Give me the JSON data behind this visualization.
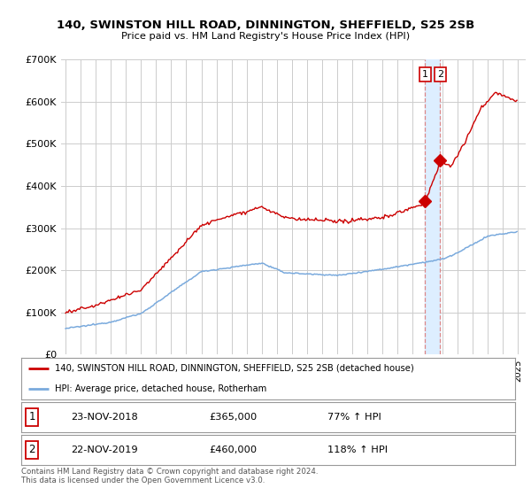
{
  "title1": "140, SWINSTON HILL ROAD, DINNINGTON, SHEFFIELD, S25 2SB",
  "title2": "Price paid vs. HM Land Registry's House Price Index (HPI)",
  "legend_line1": "140, SWINSTON HILL ROAD, DINNINGTON, SHEFFIELD, S25 2SB (detached house)",
  "legend_line2": "HPI: Average price, detached house, Rotherham",
  "footnote": "Contains HM Land Registry data © Crown copyright and database right 2024.\nThis data is licensed under the Open Government Licence v3.0.",
  "point1_label": "1",
  "point1_date": "23-NOV-2018",
  "point1_price": "£365,000",
  "point1_hpi": "77% ↑ HPI",
  "point2_label": "2",
  "point2_date": "22-NOV-2019",
  "point2_price": "£460,000",
  "point2_hpi": "118% ↑ HPI",
  "red_color": "#cc0000",
  "blue_color": "#7aaadd",
  "marker_color": "#cc0000",
  "dashed_color": "#dd8888",
  "shade_color": "#ddeeff",
  "grid_color": "#cccccc",
  "background_color": "#ffffff",
  "ylim": [
    0,
    700000
  ],
  "yticks": [
    0,
    100000,
    200000,
    300000,
    400000,
    500000,
    600000,
    700000
  ],
  "ytick_labels": [
    "£0",
    "£100K",
    "£200K",
    "£300K",
    "£400K",
    "£500K",
    "£600K",
    "£700K"
  ]
}
